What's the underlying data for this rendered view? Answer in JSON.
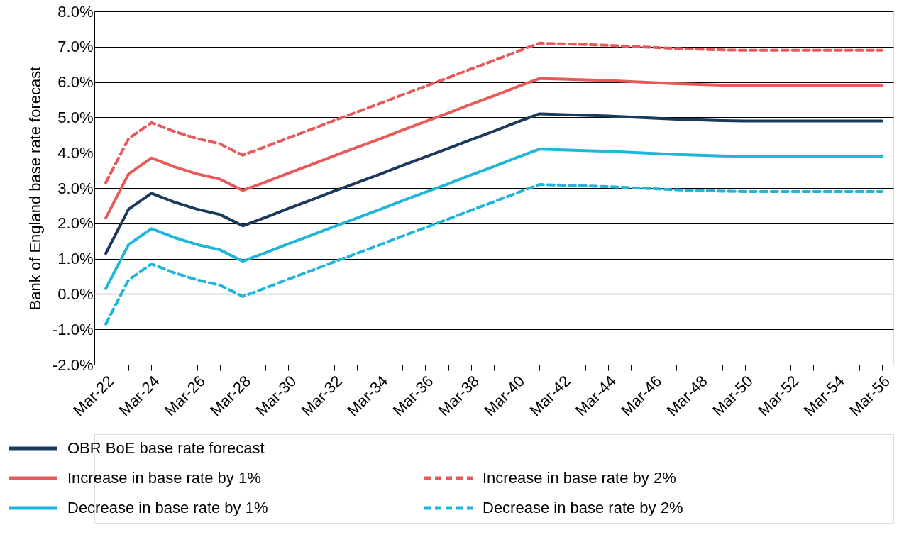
{
  "chart_data": {
    "type": "line",
    "ylabel": "Bank of England base rate forecast",
    "categories": [
      "Mar-22",
      null,
      "Mar-24",
      null,
      "Mar-26",
      null,
      "Mar-28",
      null,
      "Mar-30",
      null,
      "Mar-32",
      null,
      "Mar-34",
      null,
      "Mar-36",
      null,
      "Mar-38",
      null,
      "Mar-40",
      null,
      "Mar-42",
      null,
      "Mar-44",
      null,
      "Mar-46",
      null,
      "Mar-48",
      null,
      "Mar-50",
      null,
      "Mar-52",
      null,
      "Mar-54",
      null,
      "Mar-56"
    ],
    "series": [
      {
        "name": "OBR BoE base rate forecast",
        "color": "#1b3a5c",
        "line_style": "solid",
        "values": [
          1.15,
          2.4,
          2.85,
          2.6,
          2.4,
          2.25,
          1.93,
          2.17,
          2.42,
          2.66,
          2.91,
          3.15,
          3.39,
          3.64,
          3.88,
          4.12,
          4.37,
          4.61,
          4.86,
          5.1,
          5.08,
          5.06,
          5.04,
          5.01,
          4.98,
          4.95,
          4.93,
          4.91,
          4.9,
          4.9,
          4.9,
          4.9,
          4.9,
          4.9,
          4.9
        ]
      },
      {
        "name": "Increase in base rate by 1%",
        "color": "#e85a5a",
        "line_style": "solid",
        "values": [
          2.15,
          3.4,
          3.85,
          3.6,
          3.4,
          3.25,
          2.93,
          3.17,
          3.42,
          3.66,
          3.91,
          4.15,
          4.39,
          4.64,
          4.88,
          5.12,
          5.37,
          5.61,
          5.86,
          6.1,
          6.08,
          6.06,
          6.04,
          6.01,
          5.98,
          5.95,
          5.93,
          5.91,
          5.9,
          5.9,
          5.9,
          5.9,
          5.9,
          5.9,
          5.9
        ]
      },
      {
        "name": "Increase in base rate by 2%",
        "color": "#e85a5a",
        "line_style": "dashed",
        "values": [
          3.15,
          4.4,
          4.85,
          4.6,
          4.4,
          4.25,
          3.93,
          4.17,
          4.42,
          4.66,
          4.91,
          5.15,
          5.39,
          5.64,
          5.88,
          6.12,
          6.37,
          6.61,
          6.86,
          7.1,
          7.08,
          7.06,
          7.04,
          7.01,
          6.98,
          6.95,
          6.93,
          6.91,
          6.9,
          6.9,
          6.9,
          6.9,
          6.9,
          6.9,
          6.9
        ]
      },
      {
        "name": "Decrease in base rate by 1%",
        "color": "#1fb6d9",
        "line_style": "solid",
        "values": [
          0.15,
          1.4,
          1.85,
          1.6,
          1.4,
          1.25,
          0.93,
          1.17,
          1.42,
          1.66,
          1.91,
          2.15,
          2.39,
          2.64,
          2.88,
          3.12,
          3.37,
          3.61,
          3.86,
          4.1,
          4.08,
          4.06,
          4.04,
          4.01,
          3.98,
          3.95,
          3.93,
          3.91,
          3.9,
          3.9,
          3.9,
          3.9,
          3.9,
          3.9,
          3.9
        ]
      },
      {
        "name": "Decrease in base rate by 2%",
        "color": "#1fb6d9",
        "line_style": "dashed",
        "values": [
          -0.85,
          0.4,
          0.85,
          0.6,
          0.4,
          0.25,
          -0.07,
          0.17,
          0.42,
          0.66,
          0.91,
          1.15,
          1.39,
          1.64,
          1.88,
          2.12,
          2.37,
          2.61,
          2.86,
          3.1,
          3.08,
          3.06,
          3.04,
          3.01,
          2.98,
          2.95,
          2.93,
          2.91,
          2.9,
          2.9,
          2.9,
          2.9,
          2.9,
          2.9,
          2.9
        ]
      }
    ],
    "ylim": [
      -2,
      8
    ],
    "yticks": [
      {
        "value": -2,
        "label": "-2.0%"
      },
      {
        "value": -1,
        "label": "-1.0%"
      },
      {
        "value": 0,
        "label": "0.0%"
      },
      {
        "value": 1,
        "label": "1.0%"
      },
      {
        "value": 2,
        "label": "2.0%"
      },
      {
        "value": 3,
        "label": "3.0%"
      },
      {
        "value": 4,
        "label": "4.0%"
      },
      {
        "value": 5,
        "label": "5.0%"
      },
      {
        "value": 6,
        "label": "6.0%"
      },
      {
        "value": 7,
        "label": "7.0%"
      },
      {
        "value": 8,
        "label": "8.0%"
      }
    ],
    "ref_lines": [
      {
        "axis": "y",
        "value": 0,
        "color": "#a6a6a6"
      }
    ],
    "grid": "y",
    "legend": "bottom",
    "marker": "none"
  }
}
